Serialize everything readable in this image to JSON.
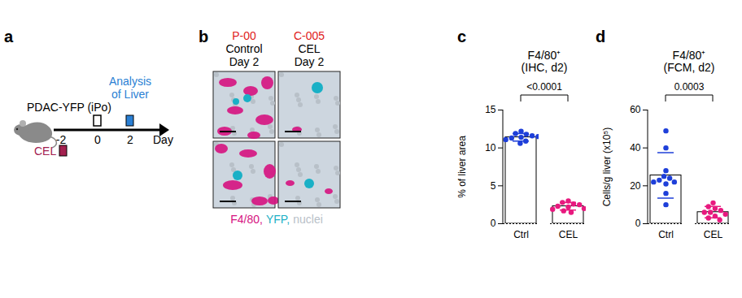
{
  "panels": [
    "a",
    "b",
    "c",
    "d"
  ],
  "timeline": {
    "injection": "PDAC-YFP (iPo)",
    "analysis": [
      "Analysis",
      "of Liver"
    ],
    "treatment": "CEL",
    "ticks": [
      "-2",
      "0",
      "2"
    ],
    "unit": "Day",
    "analysis_color": "#2a7fd4",
    "treatment_color": "#a3204f"
  },
  "images": {
    "columns": [
      {
        "id": "P-00",
        "group": "Control",
        "time": "Day 2"
      },
      {
        "id": "C-005",
        "group": "CEL",
        "time": "Day 2"
      }
    ],
    "legend": [
      {
        "text": "F4/80,",
        "color": "#d6127f"
      },
      {
        "text": "YFP,",
        "color": "#1ab0c6"
      },
      {
        "text": "nuclei",
        "color": "#b8c0c8"
      }
    ]
  },
  "chart_data": [
    {
      "type": "bar",
      "title": "F4/80⁺",
      "subtitle": "(IHC, d2)",
      "y_label": "% of liver area",
      "categories": [
        "Ctrl",
        "CEL"
      ],
      "values": [
        11.4,
        2.3
      ],
      "errors": [
        0.5,
        0.5
      ],
      "colors": [
        "#1e3fd9",
        "#e8197f"
      ],
      "points": [
        [
          12.2,
          11.9,
          11.8,
          11.6,
          11.4,
          11.3,
          11.1,
          10.9,
          10.6,
          11.5
        ],
        [
          3.0,
          2.8,
          2.6,
          2.5,
          2.3,
          2.2,
          2.0,
          1.9,
          1.7,
          1.5
        ]
      ],
      "annotations": [
        "<0.0001"
      ],
      "ylim": [
        0,
        15
      ],
      "yticks": [
        0,
        5,
        10,
        15
      ]
    },
    {
      "type": "bar",
      "title": "F4/80⁺",
      "subtitle": "(FCM, d2)",
      "y_label": "Cells/g liver (x10⁵)",
      "categories": [
        "Ctrl",
        "CEL"
      ],
      "values": [
        25.5,
        6.1
      ],
      "errors": [
        12,
        3
      ],
      "colors": [
        "#1e3fd9",
        "#e8197f"
      ],
      "points": [
        [
          49,
          40,
          28,
          25,
          24,
          23,
          22,
          21,
          16,
          10,
          22
        ],
        [
          11,
          9,
          8,
          7,
          6,
          6,
          5,
          4,
          3,
          2
        ]
      ],
      "annotations": [
        "0.0003"
      ],
      "ylim": [
        0,
        60
      ],
      "yticks": [
        0,
        20,
        40,
        60
      ]
    }
  ]
}
